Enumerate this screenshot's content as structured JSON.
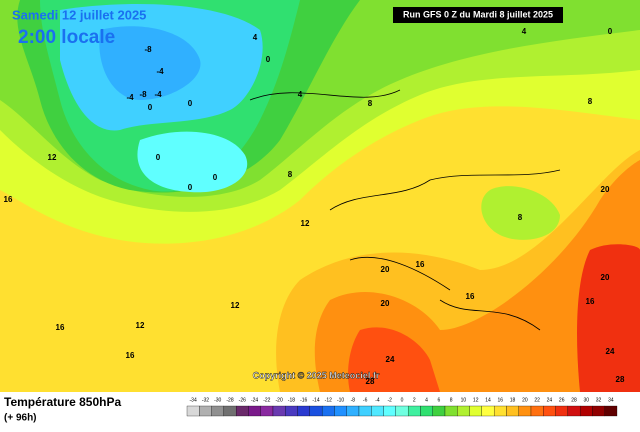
{
  "header": {
    "valid_time": "Samedi 12 juillet 2025",
    "local_time": "2:00 locale"
  },
  "run": "Run GFS 0 Z du Mardi 8 juillet 2025",
  "copyright": "Copyright © 2025 Meteociel.fr",
  "legend": {
    "title": "Température 850hPa",
    "lead": "(+ 96h)"
  },
  "scale": {
    "values": [
      -34,
      -32,
      -30,
      -28,
      -26,
      -24,
      -22,
      -20,
      -18,
      -16,
      -14,
      -12,
      -10,
      -8,
      -6,
      -4,
      -2,
      0,
      2,
      4,
      6,
      8,
      10,
      12,
      14,
      16,
      18,
      20,
      22,
      24,
      26,
      28,
      30,
      32,
      34
    ],
    "colors": [
      "#d8d8d8",
      "#b0b0b0",
      "#909090",
      "#707070",
      "#6a2a6a",
      "#7a1a8a",
      "#8a2aa0",
      "#6a3ab0",
      "#4a3ac0",
      "#2a3ad0",
      "#1a50e0",
      "#1a70f0",
      "#2090ff",
      "#30b0ff",
      "#40d0ff",
      "#50e8ff",
      "#60ffff",
      "#70ffe0",
      "#40f0a0",
      "#30e070",
      "#40d040",
      "#80e030",
      "#b0f030",
      "#e0ff30",
      "#ffff40",
      "#ffe030",
      "#ffc020",
      "#ff9010",
      "#ff7010",
      "#ff5010",
      "#f03010",
      "#d01010",
      "#b00000",
      "#900000",
      "#600000"
    ]
  },
  "contour_labels": [
    -8,
    -4,
    -4,
    -8,
    -4,
    0,
    0,
    0,
    0,
    0,
    0,
    4,
    4,
    8,
    8,
    12,
    12,
    12,
    12,
    16,
    16,
    16,
    16,
    16,
    16,
    20,
    20,
    20,
    20,
    24,
    24,
    28,
    28,
    8,
    4,
    0,
    8
  ]
}
